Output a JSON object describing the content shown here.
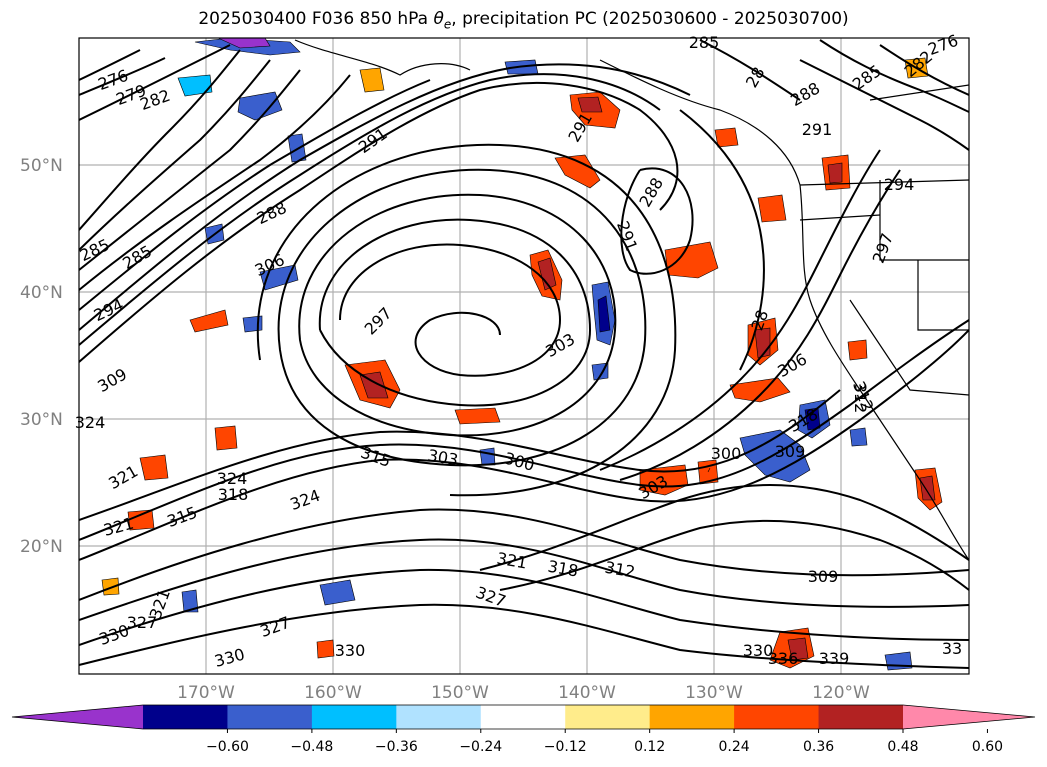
{
  "title_prefix": "2025030400 F036 850 hPa ",
  "title_symbol": "θ",
  "title_subscript": "e",
  "title_suffix": ", precipitation PC (2025030600 - 2025030700)",
  "latitude_labels": [
    "50°N",
    "40°N",
    "30°N",
    "20°N"
  ],
  "longitude_labels": [
    "170°W",
    "160°W",
    "150°W",
    "140°W",
    "130°W",
    "120°W"
  ],
  "colorbar": {
    "colors": [
      "#9933cc",
      "#00008b",
      "#3a5fcd",
      "#00bfff",
      "#b0e2ff",
      "#ffffff",
      "#ffec8b",
      "#ffa500",
      "#ff4500",
      "#b22222",
      "#ff88aa"
    ],
    "tick_labels": [
      "−0.60",
      "−0.48",
      "−0.36",
      "−0.24",
      "−0.12",
      "0.12",
      "0.24",
      "0.36",
      "0.48",
      "0.60"
    ]
  },
  "contour_labels": [
    "276",
    "279",
    "282",
    "285",
    "285",
    "288",
    "291",
    "291",
    "288",
    "291",
    "294",
    "306",
    "297",
    "303",
    "309",
    "324",
    "321",
    "324",
    "318",
    "315",
    "321",
    "324",
    "315",
    "303",
    "300",
    "300",
    "309",
    "318",
    "303",
    "306",
    "312",
    "321",
    "318",
    "312",
    "309",
    "327",
    "327",
    "321",
    "330",
    "330",
    "330",
    "327",
    "330",
    "336",
    "339",
    "285",
    "282",
    "276",
    "285",
    "288",
    "28",
    "291",
    "294",
    "297",
    "28",
    "312",
    "33"
  ]
}
